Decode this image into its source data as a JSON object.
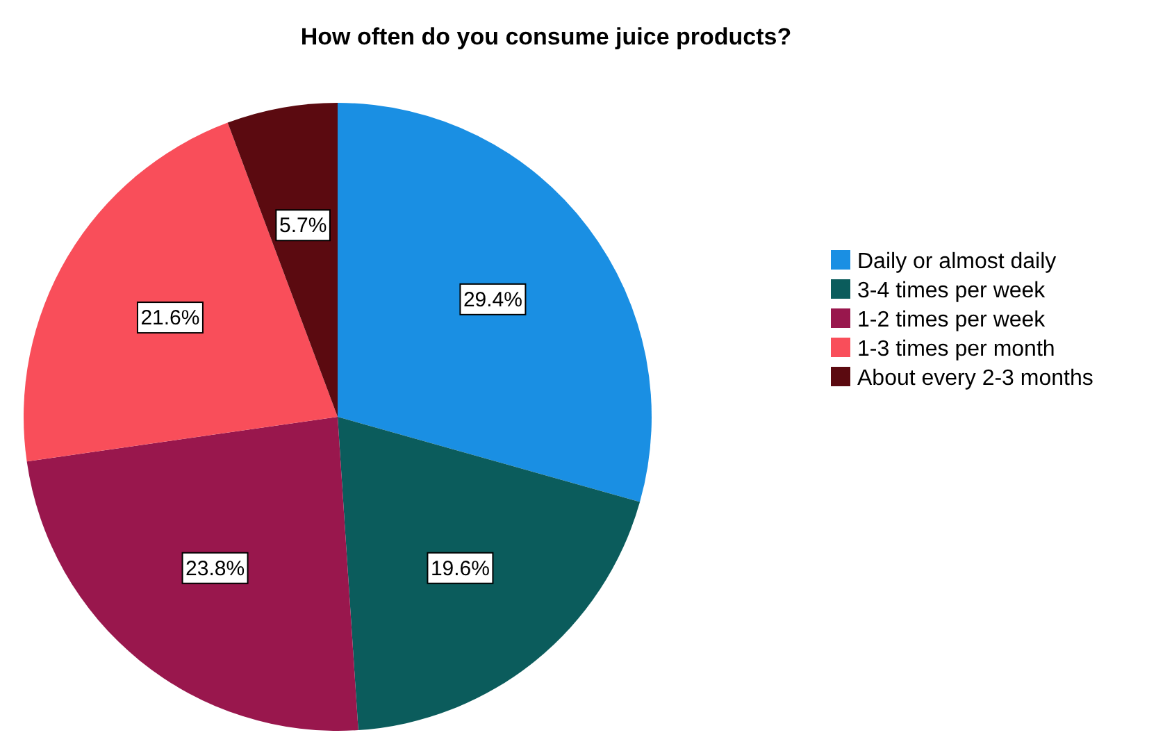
{
  "chart_data": {
    "type": "pie",
    "title": "How often do you consume juice products?",
    "categories": [
      "Daily or almost daily",
      "3-4 times per week",
      "1-2 times per week",
      "1-3 times per month",
      "About every 2-3 months"
    ],
    "values": [
      29.4,
      19.6,
      23.8,
      21.6,
      5.7
    ],
    "colors": [
      "#1a8fe3",
      "#0b5c5c",
      "#99174d",
      "#f94e5a",
      "#5b0a10"
    ],
    "value_labels": [
      "29.4%",
      "19.6%",
      "23.8%",
      "21.6%",
      "5.7%"
    ],
    "legend": "right"
  }
}
